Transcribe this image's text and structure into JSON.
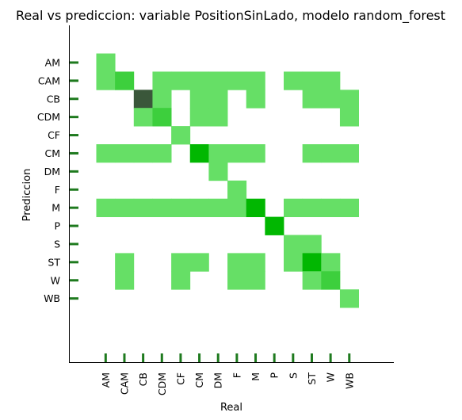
{
  "chart_data": {
    "type": "heatmap",
    "title": "Real vs prediccion: variable PositionSinLado, modelo random_forest",
    "xlabel": "Real",
    "ylabel": "Prediccion",
    "x_categories": [
      "AM",
      "CAM",
      "CB",
      "CDM",
      "CF",
      "CM",
      "DM",
      "F",
      "M",
      "P",
      "S",
      "ST",
      "W",
      "WB"
    ],
    "y_categories": [
      "AM",
      "CAM",
      "CB",
      "CDM",
      "CF",
      "CM",
      "DM",
      "F",
      "M",
      "P",
      "S",
      "ST",
      "W",
      "WB"
    ],
    "grid": false,
    "legend": "none",
    "colors": {
      "low": "#66df66",
      "mid": "#00b800",
      "high": "#3a573a",
      "tick": "#1e7a1e"
    },
    "cells": [
      {
        "real": "AM",
        "pred": "AM",
        "level": 1
      },
      {
        "real": "AM",
        "pred": "CAM",
        "level": 1
      },
      {
        "real": "CAM",
        "pred": "CAM",
        "level": 3
      },
      {
        "real": "CDM",
        "pred": "CAM",
        "level": 1
      },
      {
        "real": "CF",
        "pred": "CAM",
        "level": 1
      },
      {
        "real": "CM",
        "pred": "CAM",
        "level": 1
      },
      {
        "real": "DM",
        "pred": "CAM",
        "level": 1
      },
      {
        "real": "F",
        "pred": "CAM",
        "level": 1
      },
      {
        "real": "M",
        "pred": "CAM",
        "level": 1
      },
      {
        "real": "S",
        "pred": "CAM",
        "level": 1
      },
      {
        "real": "ST",
        "pred": "CAM",
        "level": 1
      },
      {
        "real": "W",
        "pred": "CAM",
        "level": 1
      },
      {
        "real": "CB",
        "pred": "CB",
        "level": 10
      },
      {
        "real": "CDM",
        "pred": "CB",
        "level": 1
      },
      {
        "real": "CM",
        "pred": "CB",
        "level": 1
      },
      {
        "real": "DM",
        "pred": "CB",
        "level": 1
      },
      {
        "real": "M",
        "pred": "CB",
        "level": 1
      },
      {
        "real": "ST",
        "pred": "CB",
        "level": 1
      },
      {
        "real": "W",
        "pred": "CB",
        "level": 1
      },
      {
        "real": "WB",
        "pred": "CB",
        "level": 1
      },
      {
        "real": "CB",
        "pred": "CDM",
        "level": 1
      },
      {
        "real": "CDM",
        "pred": "CDM",
        "level": 3
      },
      {
        "real": "CM",
        "pred": "CDM",
        "level": 1
      },
      {
        "real": "DM",
        "pred": "CDM",
        "level": 1
      },
      {
        "real": "WB",
        "pred": "CDM",
        "level": 1
      },
      {
        "real": "CF",
        "pred": "CF",
        "level": 1
      },
      {
        "real": "AM",
        "pred": "CM",
        "level": 1
      },
      {
        "real": "CAM",
        "pred": "CM",
        "level": 1
      },
      {
        "real": "CB",
        "pred": "CM",
        "level": 1
      },
      {
        "real": "CDM",
        "pred": "CM",
        "level": 1
      },
      {
        "real": "CM",
        "pred": "CM",
        "level": 6
      },
      {
        "real": "DM",
        "pred": "CM",
        "level": 1
      },
      {
        "real": "F",
        "pred": "CM",
        "level": 1
      },
      {
        "real": "M",
        "pred": "CM",
        "level": 1
      },
      {
        "real": "ST",
        "pred": "CM",
        "level": 1
      },
      {
        "real": "W",
        "pred": "CM",
        "level": 1
      },
      {
        "real": "WB",
        "pred": "CM",
        "level": 1
      },
      {
        "real": "DM",
        "pred": "DM",
        "level": 1
      },
      {
        "real": "F",
        "pred": "F",
        "level": 1
      },
      {
        "real": "AM",
        "pred": "M",
        "level": 1
      },
      {
        "real": "CAM",
        "pred": "M",
        "level": 1
      },
      {
        "real": "CB",
        "pred": "M",
        "level": 1
      },
      {
        "real": "CDM",
        "pred": "M",
        "level": 1
      },
      {
        "real": "CF",
        "pred": "M",
        "level": 1
      },
      {
        "real": "CM",
        "pred": "M",
        "level": 1
      },
      {
        "real": "DM",
        "pred": "M",
        "level": 1
      },
      {
        "real": "F",
        "pred": "M",
        "level": 1
      },
      {
        "real": "M",
        "pred": "M",
        "level": 6
      },
      {
        "real": "S",
        "pred": "M",
        "level": 1
      },
      {
        "real": "ST",
        "pred": "M",
        "level": 1
      },
      {
        "real": "W",
        "pred": "M",
        "level": 1
      },
      {
        "real": "WB",
        "pred": "M",
        "level": 1
      },
      {
        "real": "P",
        "pred": "P",
        "level": 6
      },
      {
        "real": "S",
        "pred": "S",
        "level": 1
      },
      {
        "real": "ST",
        "pred": "S",
        "level": 1
      },
      {
        "real": "CAM",
        "pred": "ST",
        "level": 1
      },
      {
        "real": "CF",
        "pred": "ST",
        "level": 1
      },
      {
        "real": "CM",
        "pred": "ST",
        "level": 1
      },
      {
        "real": "F",
        "pred": "ST",
        "level": 1
      },
      {
        "real": "M",
        "pred": "ST",
        "level": 1
      },
      {
        "real": "S",
        "pred": "ST",
        "level": 1
      },
      {
        "real": "ST",
        "pred": "ST",
        "level": 6
      },
      {
        "real": "W",
        "pred": "ST",
        "level": 1
      },
      {
        "real": "CAM",
        "pred": "W",
        "level": 1
      },
      {
        "real": "CF",
        "pred": "W",
        "level": 1
      },
      {
        "real": "F",
        "pred": "W",
        "level": 1
      },
      {
        "real": "M",
        "pred": "W",
        "level": 1
      },
      {
        "real": "ST",
        "pred": "W",
        "level": 1
      },
      {
        "real": "W",
        "pred": "W",
        "level": 3
      },
      {
        "real": "WB",
        "pred": "WB",
        "level": 1
      }
    ]
  }
}
